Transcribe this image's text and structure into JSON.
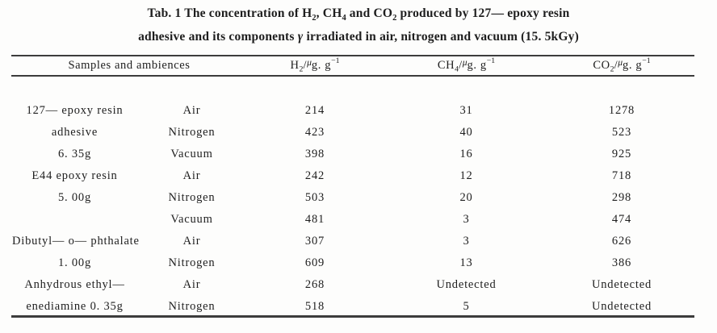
{
  "page": {
    "background": "#fdfdfc",
    "text_color": "#1e1e1e",
    "rule_color": "#3c3c3c"
  },
  "title": {
    "line1_parts": [
      {
        "t": "Tab. 1 The concentration of H",
        "s": "n"
      },
      {
        "t": "2",
        "s": "sub"
      },
      {
        "t": ", CH",
        "s": "n"
      },
      {
        "t": "4",
        "s": "sub"
      },
      {
        "t": " and CO",
        "s": "n"
      },
      {
        "t": "2",
        "s": "sub"
      },
      {
        "t": " produced by 127— epoxy resin",
        "s": "n"
      }
    ],
    "line2_parts": [
      {
        "t": "adhesive and its components ",
        "s": "n"
      },
      {
        "t": "γ",
        "s": "i"
      },
      {
        "t": " irradiated in air, nitrogen and vacuum (15. 5kGy)",
        "s": "n"
      }
    ]
  },
  "table": {
    "header": {
      "samples": "Samples and ambiences",
      "h2_parts": [
        {
          "t": "H",
          "s": "n"
        },
        {
          "t": "2",
          "s": "sub"
        },
        {
          "t": "/",
          "s": "n"
        },
        {
          "t": "μ",
          "s": "mu"
        },
        {
          "t": "g. g",
          "s": "n"
        },
        {
          "t": "−1",
          "s": "sup"
        }
      ],
      "ch4_parts": [
        {
          "t": "CH",
          "s": "n"
        },
        {
          "t": "4",
          "s": "sub"
        },
        {
          "t": "/",
          "s": "n"
        },
        {
          "t": "μ",
          "s": "mu"
        },
        {
          "t": "g. g",
          "s": "n"
        },
        {
          "t": "−1",
          "s": "sup"
        }
      ],
      "co2_parts": [
        {
          "t": "CO",
          "s": "n"
        },
        {
          "t": "2",
          "s": "sub"
        },
        {
          "t": "/",
          "s": "n"
        },
        {
          "t": "μ",
          "s": "mu"
        },
        {
          "t": "g. g",
          "s": "n"
        },
        {
          "t": "−1",
          "s": "sup"
        }
      ]
    },
    "rows": [
      {
        "sample": "127— epoxy resin",
        "ambience": "Air",
        "h2": "214",
        "ch4": "31",
        "co2": "1278"
      },
      {
        "sample": "adhesive",
        "ambience": "Nitrogen",
        "h2": "423",
        "ch4": "40",
        "co2": "523"
      },
      {
        "sample": "6. 35g",
        "ambience": "Vacuum",
        "h2": "398",
        "ch4": "16",
        "co2": "925"
      },
      {
        "sample": "E44 epoxy resin",
        "ambience": "Air",
        "h2": "242",
        "ch4": "12",
        "co2": "718"
      },
      {
        "sample": "5. 00g",
        "ambience": "Nitrogen",
        "h2": "503",
        "ch4": "20",
        "co2": "298"
      },
      {
        "sample": "",
        "ambience": "Vacuum",
        "h2": "481",
        "ch4": "3",
        "co2": "474"
      },
      {
        "sample": "Dibutyl— o— phthalate",
        "ambience": "Air",
        "h2": "307",
        "ch4": "3",
        "co2": "626"
      },
      {
        "sample": "1. 00g",
        "ambience": "Nitrogen",
        "h2": "609",
        "ch4": "13",
        "co2": "386"
      },
      {
        "sample": "Anhydrous ethyl—",
        "ambience": "Air",
        "h2": "268",
        "ch4": "Undetected",
        "co2": "Undetected"
      },
      {
        "sample": "enediamine 0. 35g",
        "ambience": "Nitrogen",
        "h2": "518",
        "ch4": "5",
        "co2": "Undetected"
      }
    ]
  },
  "chart_data": {
    "type": "table",
    "title": "Tab. 1 The concentration of H2, CH4 and CO2 produced by 127— epoxy resin adhesive and its components γ irradiated in air, nitrogen and vacuum (15. 5kGy)",
    "columns": [
      "Samples and ambiences (sample)",
      "Samples and ambiences (ambience)",
      "H2/μg.g−1",
      "CH4/μg.g−1",
      "CO2/μg.g−1"
    ],
    "rows": [
      [
        "127— epoxy resin adhesive 6. 35g",
        "Air",
        214,
        31,
        1278
      ],
      [
        "127— epoxy resin adhesive 6. 35g",
        "Nitrogen",
        423,
        40,
        523
      ],
      [
        "127— epoxy resin adhesive 6. 35g",
        "Vacuum",
        398,
        16,
        925
      ],
      [
        "E44 epoxy resin 5. 00g",
        "Air",
        242,
        12,
        718
      ],
      [
        "E44 epoxy resin 5. 00g",
        "Nitrogen",
        503,
        20,
        298
      ],
      [
        "E44 epoxy resin 5. 00g",
        "Vacuum",
        481,
        3,
        474
      ],
      [
        "Dibutyl— o— phthalate 1. 00g",
        "Air",
        307,
        3,
        626
      ],
      [
        "Dibutyl— o— phthalate 1. 00g",
        "Nitrogen",
        609,
        13,
        386
      ],
      [
        "Anhydrous ethylenediamine 0. 35g",
        "Air",
        268,
        "Undetected",
        "Undetected"
      ],
      [
        "Anhydrous ethylenediamine 0. 35g",
        "Nitrogen",
        518,
        5,
        "Undetected"
      ]
    ]
  }
}
